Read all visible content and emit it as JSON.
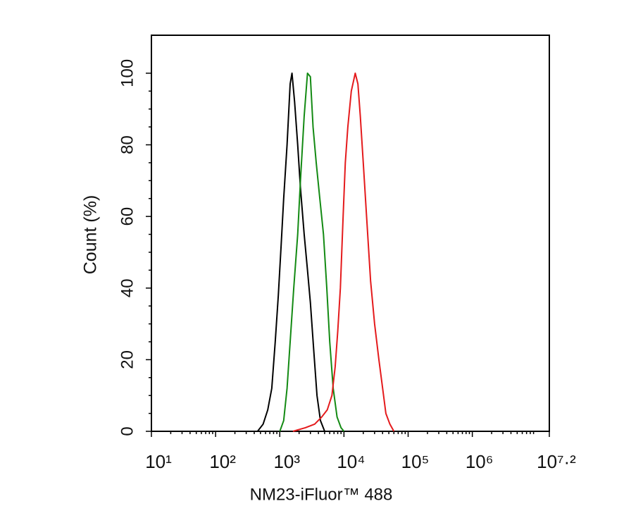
{
  "chart_data": {
    "type": "line",
    "x_label": "NM23-iFluor™ 488",
    "y_label": "Count  (%)",
    "x_scale": "log",
    "xlim": [
      10,
      15848931.92
    ],
    "xticks": [
      {
        "value": 10,
        "label": "10¹"
      },
      {
        "value": 100,
        "label": "10²"
      },
      {
        "value": 1000,
        "label": "10³"
      },
      {
        "value": 10000,
        "label": "10⁴"
      },
      {
        "value": 100000,
        "label": "10⁵"
      },
      {
        "value": 1000000,
        "label": "10⁶"
      },
      {
        "value": 15848931.92,
        "label": "10⁷·²"
      }
    ],
    "ylim": [
      0,
      110.6
    ],
    "yticks": [
      0,
      20,
      40,
      60,
      80,
      100
    ],
    "series": [
      {
        "color": "#000000",
        "x": [
          450,
          550,
          650,
          750,
          850,
          950,
          1050,
          1150,
          1300,
          1450,
          1550,
          1700,
          1900,
          2100,
          2400,
          2700,
          3000,
          3400,
          3800,
          4300,
          5000
        ],
        "values": [
          0,
          2,
          6,
          12,
          25,
          38,
          52,
          65,
          80,
          97,
          100,
          92,
          80,
          68,
          55,
          45,
          36,
          22,
          10,
          3,
          0
        ]
      },
      {
        "color": "#138a13",
        "x": [
          1000,
          1150,
          1300,
          1450,
          1650,
          1900,
          2100,
          2400,
          2700,
          3000,
          3300,
          3700,
          4200,
          4800,
          5400,
          6000,
          6800,
          7800,
          9000,
          10000
        ],
        "values": [
          0,
          3,
          12,
          25,
          40,
          55,
          70,
          88,
          100,
          99,
          85,
          75,
          65,
          55,
          40,
          25,
          12,
          4,
          1,
          0
        ]
      },
      {
        "color": "#e41a1c",
        "x": [
          1600,
          2500,
          3500,
          4500,
          5500,
          6500,
          7300,
          8000,
          8800,
          9700,
          10500,
          11500,
          13000,
          15000,
          16500,
          18000,
          20000,
          22500,
          26000,
          30000,
          35000,
          40000,
          45000,
          52000,
          60000
        ],
        "values": [
          0,
          1,
          2,
          4,
          6,
          10,
          18,
          28,
          40,
          60,
          75,
          85,
          95,
          100,
          97,
          88,
          75,
          60,
          42,
          30,
          20,
          12,
          5,
          2,
          0
        ]
      }
    ]
  }
}
